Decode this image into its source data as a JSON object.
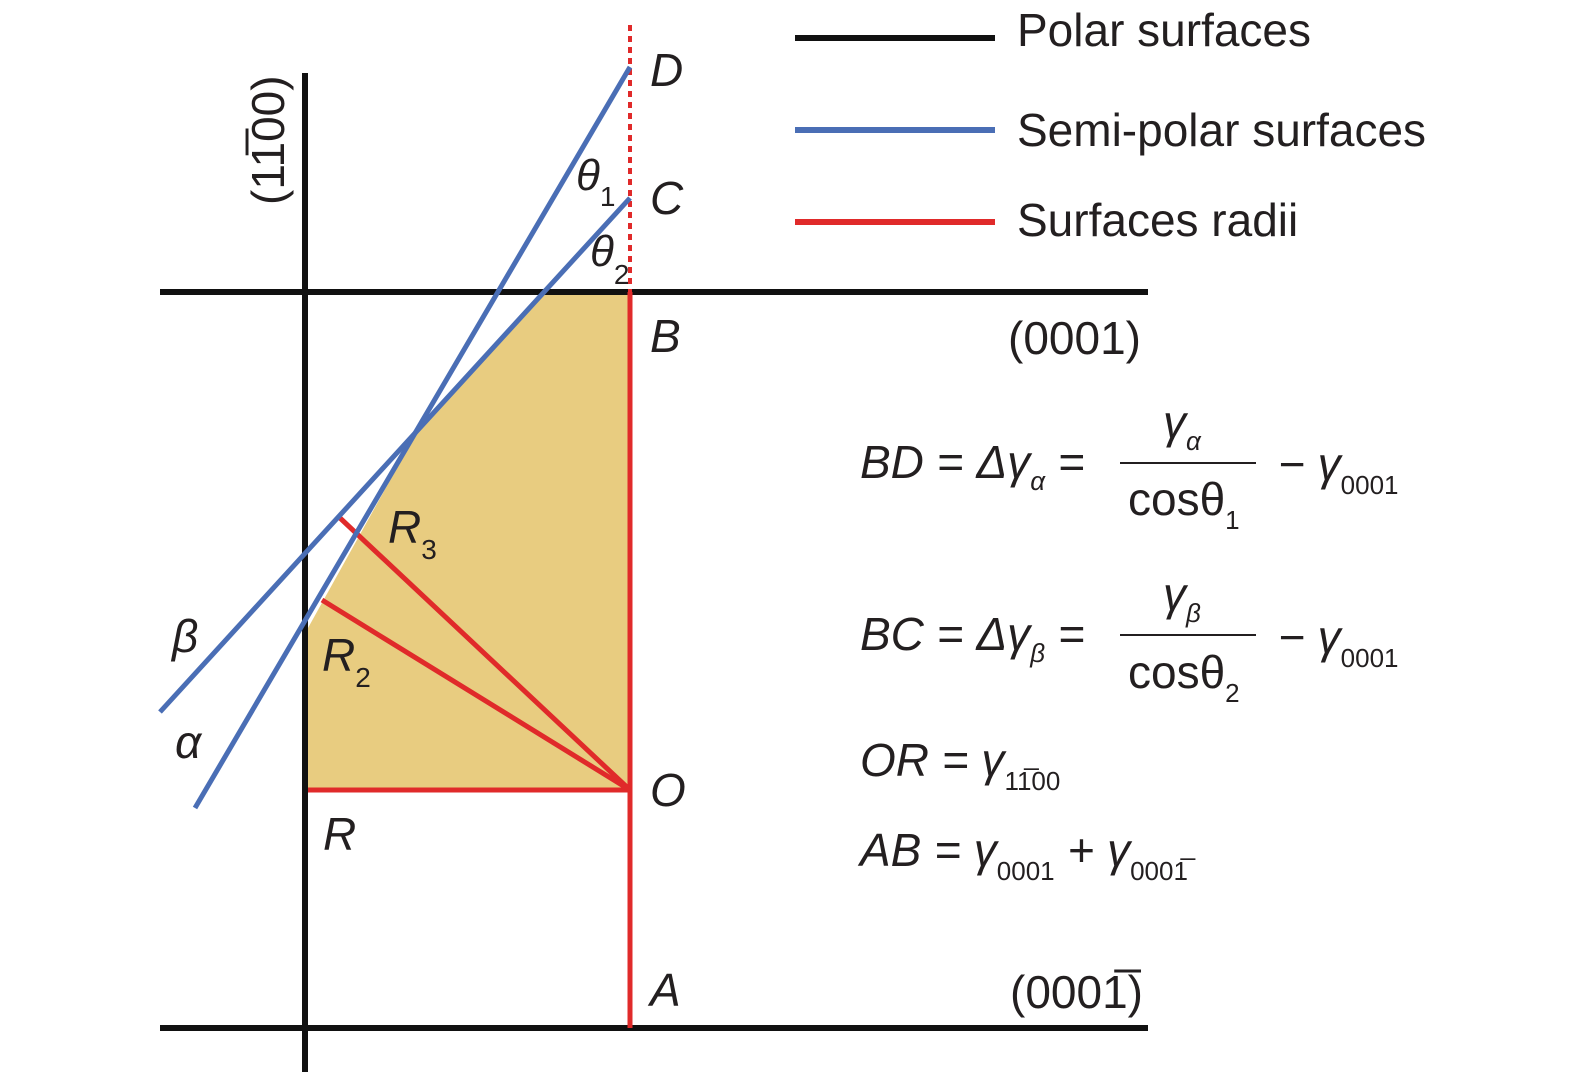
{
  "legend": {
    "polar": "Polar surfaces",
    "semipolar": "Semi-polar surfaces",
    "radii": "Surfaces radii"
  },
  "colors": {
    "polar": "#111111",
    "semipolar": "#4a6eb5",
    "radii": "#e02a2a",
    "fill": "#e8cc80",
    "text": "#231f20"
  },
  "planes": {
    "top": "(0001)",
    "bottom": "(0001̅)",
    "vertical": "(11̅00)"
  },
  "points": {
    "D": "D",
    "C": "C",
    "B": "B",
    "O": "O",
    "A": "A",
    "R": "R"
  },
  "radii_labels": {
    "R3": "R",
    "R3_sub": "3",
    "R2": "R",
    "R2_sub": "2"
  },
  "angles": {
    "theta1": "θ",
    "theta1_sub": "1",
    "theta2": "θ",
    "theta2_sub": "2"
  },
  "facets": {
    "alpha": "α",
    "beta": "β"
  },
  "equations": {
    "bd": {
      "lhs": "BD = Δγ",
      "lhs_sub": "α",
      "eq": " =",
      "num": "γ",
      "num_sub": "α",
      "den": "cosθ",
      "den_sub": "1",
      "minus": "− γ",
      "minus_sub": "0001"
    },
    "bc": {
      "lhs": "BC = Δγ",
      "lhs_sub": "β",
      "eq": " =",
      "num": "γ",
      "num_sub": "β",
      "den": "cosθ",
      "den_sub": "2",
      "minus": "− γ",
      "minus_sub": "0001"
    },
    "or": {
      "lhs": "OR = γ",
      "lhs_sub": "11̅00"
    },
    "ab": {
      "lhs": "AB = γ",
      "lhs_sub": "0001",
      "plus": " + γ",
      "plus_sub": "0001̅"
    }
  }
}
